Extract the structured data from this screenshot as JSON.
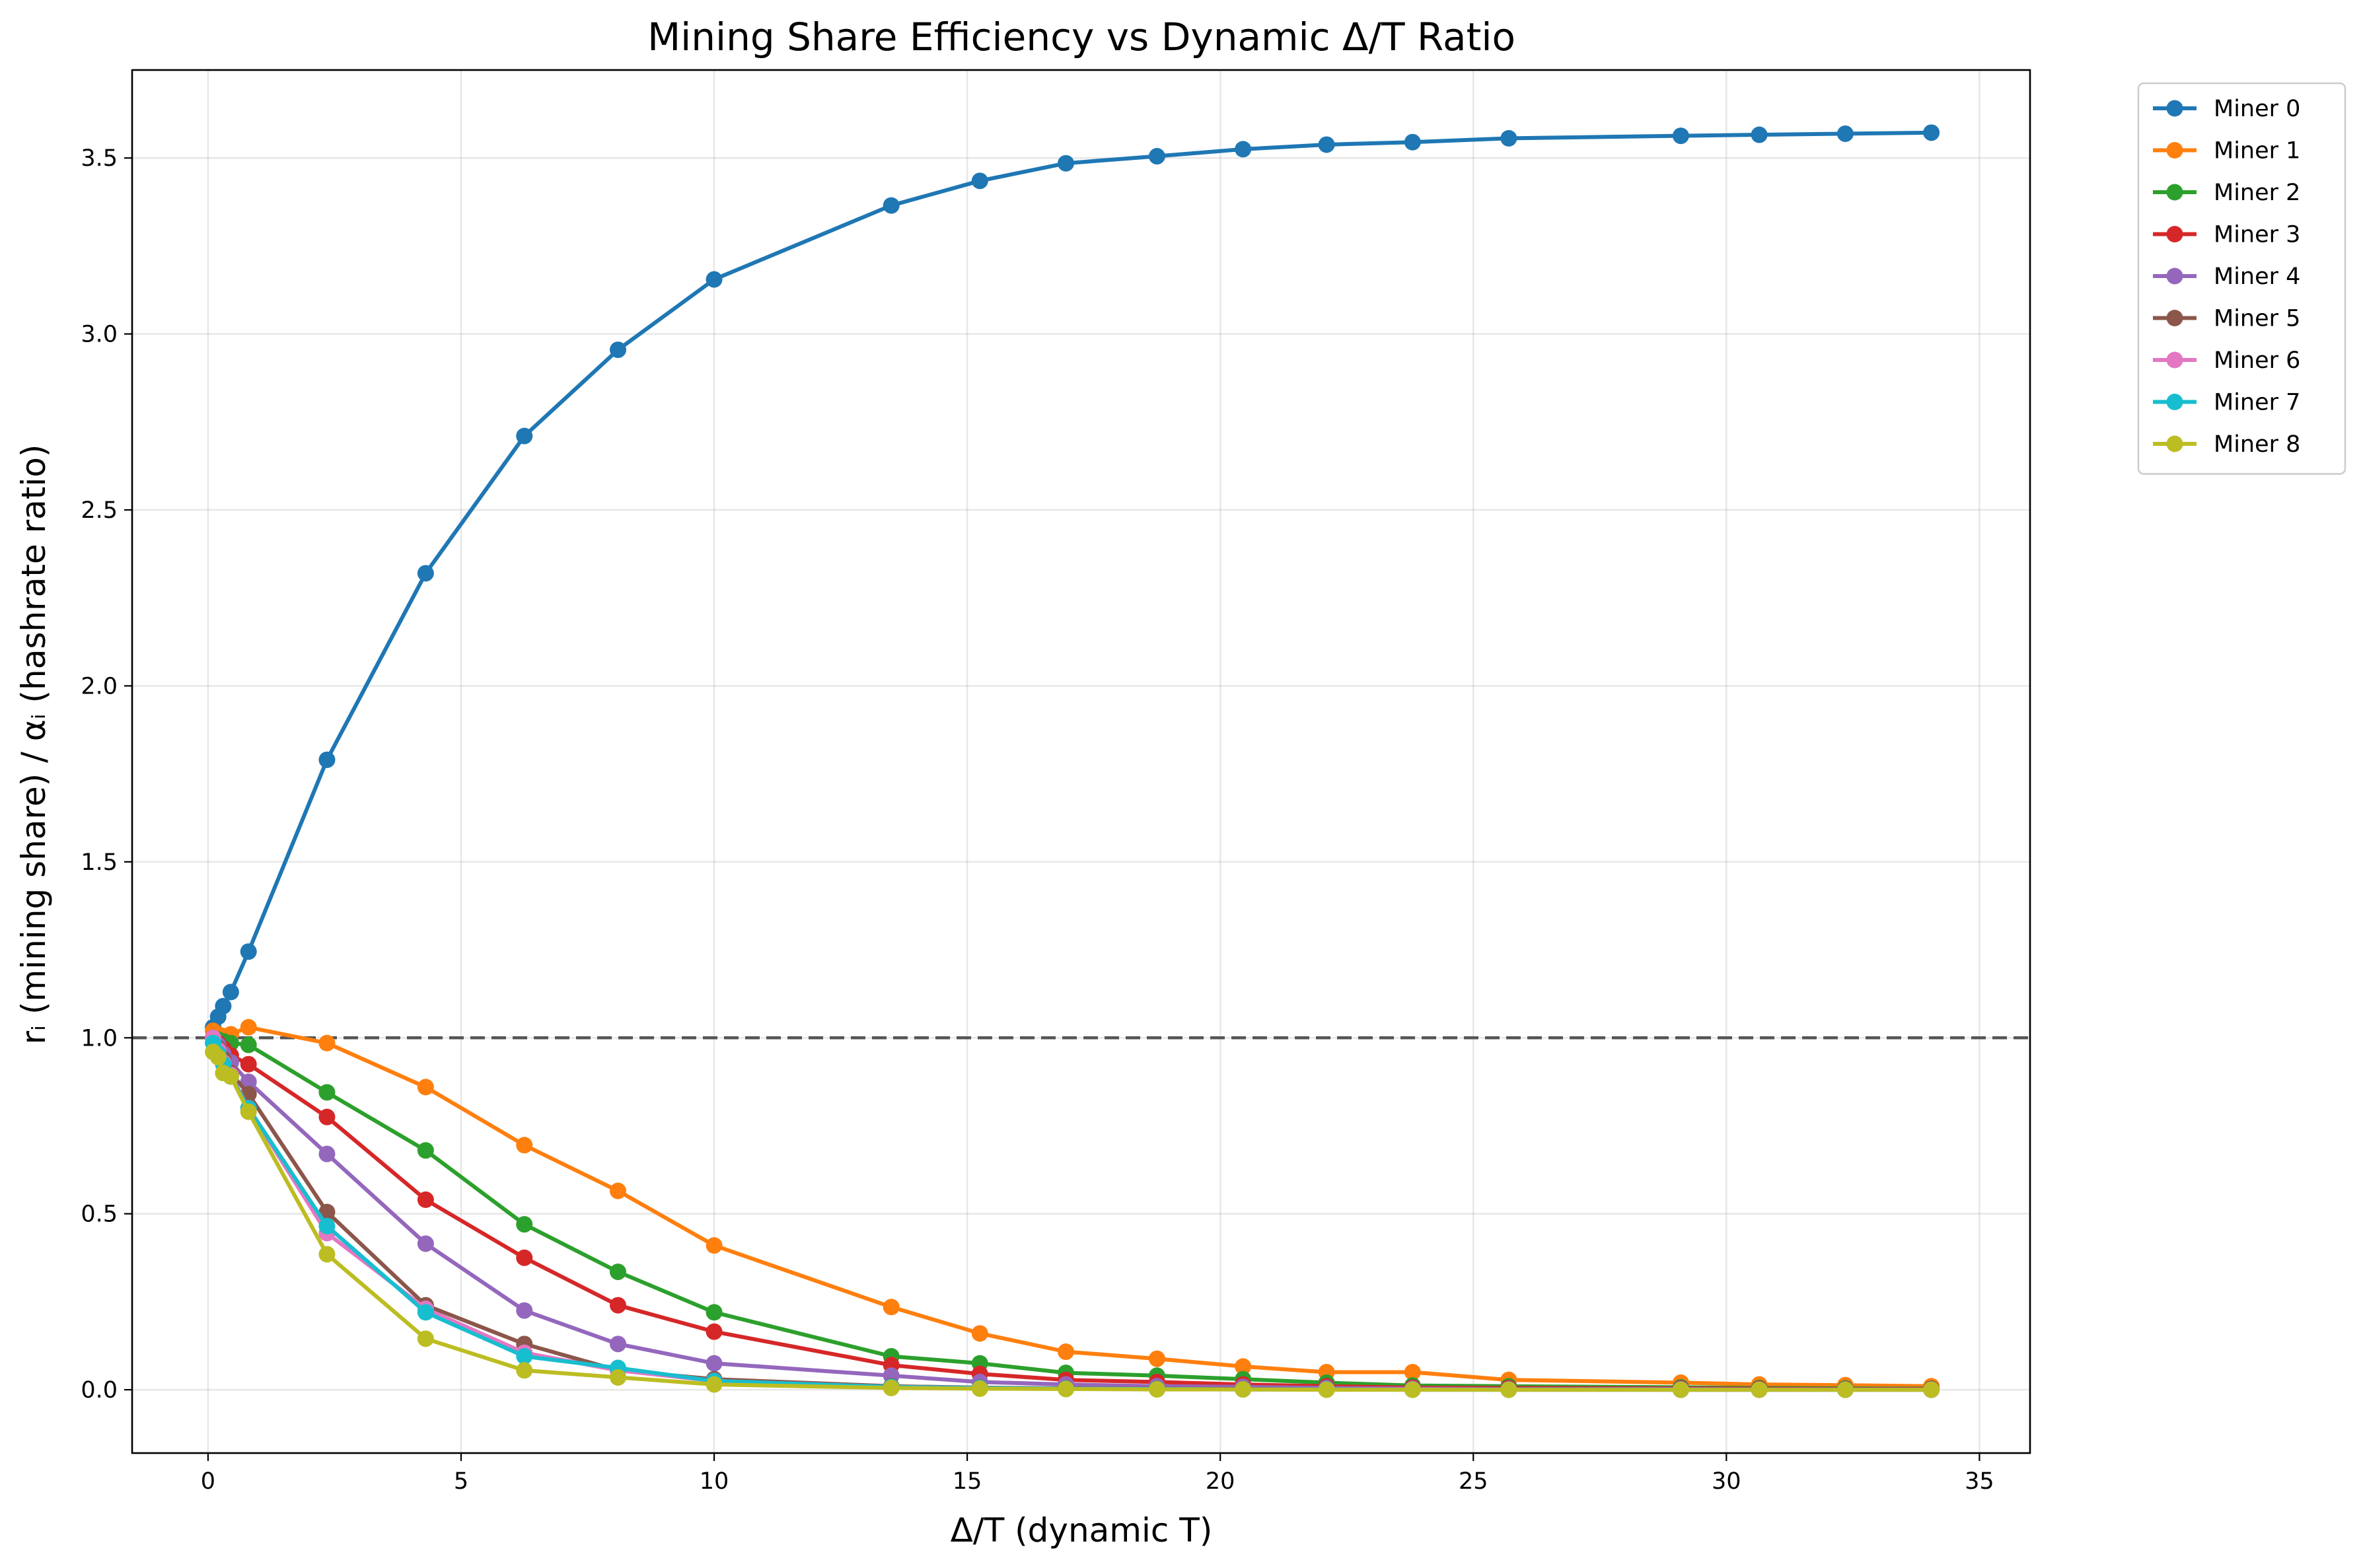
{
  "chart_data": {
    "type": "line",
    "title": "Mining Share Efficiency vs Dynamic Δ/T Ratio",
    "xlabel": "Δ/T (dynamic T)",
    "ylabel": "rᵢ (mining share) / αᵢ (hashrate ratio)",
    "xlim": [
      -1.5,
      36
    ],
    "ylim": [
      -0.18,
      3.75
    ],
    "xticks": [
      0,
      5,
      10,
      15,
      20,
      25,
      30,
      35
    ],
    "yticks": [
      0.0,
      0.5,
      1.0,
      1.5,
      2.0,
      2.5,
      3.0,
      3.5
    ],
    "xtick_labels": [
      "0",
      "5",
      "10",
      "15",
      "20",
      "25",
      "30",
      "35"
    ],
    "ytick_labels": [
      "0.0",
      "0.5",
      "1.0",
      "1.5",
      "2.0",
      "2.5",
      "3.0",
      "3.5"
    ],
    "grid": true,
    "legend_position": "outside-top-right",
    "reference_line": {
      "y": 1.0,
      "style": "dashed",
      "color": "#555555"
    },
    "x": [
      0.1,
      0.2,
      0.3,
      0.45,
      0.8,
      2.35,
      4.3,
      6.25,
      8.1,
      10.0,
      13.5,
      15.25,
      16.95,
      18.75,
      20.45,
      22.1,
      23.8,
      25.7,
      29.1,
      30.65,
      32.35,
      34.05
    ],
    "series": [
      {
        "name": "Miner 0",
        "color": "#1f77b4",
        "values": [
          1.03,
          1.06,
          1.09,
          1.13,
          1.245,
          1.79,
          2.32,
          2.71,
          2.955,
          3.155,
          3.365,
          3.435,
          3.485,
          3.505,
          3.525,
          3.538,
          3.545,
          3.556,
          3.563,
          3.566,
          3.569,
          3.572
        ]
      },
      {
        "name": "Miner 1",
        "color": "#ff7f0e",
        "values": [
          1.02,
          1.01,
          1.005,
          1.01,
          1.03,
          0.985,
          0.86,
          0.695,
          0.565,
          0.41,
          0.235,
          0.16,
          0.108,
          0.088,
          0.066,
          0.05,
          0.05,
          0.028,
          0.02,
          0.015,
          0.013,
          0.01
        ]
      },
      {
        "name": "Miner 2",
        "color": "#2ca02c",
        "values": [
          1.0,
          0.995,
          0.99,
          0.985,
          0.98,
          0.845,
          0.68,
          0.47,
          0.335,
          0.22,
          0.095,
          0.075,
          0.048,
          0.04,
          0.03,
          0.02,
          0.012,
          0.01,
          0.007,
          0.005,
          0.004,
          0.003
        ]
      },
      {
        "name": "Miner 3",
        "color": "#d62728",
        "values": [
          1.0,
          0.985,
          0.97,
          0.95,
          0.925,
          0.775,
          0.54,
          0.375,
          0.24,
          0.165,
          0.07,
          0.045,
          0.028,
          0.022,
          0.015,
          0.01,
          0.006,
          0.005,
          0.004,
          0.003,
          0.002,
          0.002
        ]
      },
      {
        "name": "Miner 4",
        "color": "#9467bd",
        "values": [
          1.0,
          0.98,
          0.955,
          0.93,
          0.875,
          0.67,
          0.415,
          0.225,
          0.13,
          0.075,
          0.04,
          0.022,
          0.015,
          0.01,
          0.008,
          0.005,
          0.003,
          0.002,
          0.002,
          0.001,
          0.001,
          0.001
        ]
      },
      {
        "name": "Miner 5",
        "color": "#8c564b",
        "values": [
          1.0,
          0.97,
          0.94,
          0.9,
          0.84,
          0.505,
          0.24,
          0.13,
          0.055,
          0.03,
          0.01,
          0.006,
          0.004,
          0.003,
          0.002,
          0.001,
          0.001,
          0.001,
          0.0,
          0.0,
          0.0,
          0.0
        ]
      },
      {
        "name": "Miner 6",
        "color": "#e377c2",
        "values": [
          1.0,
          0.965,
          0.93,
          0.895,
          0.8,
          0.445,
          0.23,
          0.105,
          0.055,
          0.025,
          0.008,
          0.005,
          0.003,
          0.002,
          0.001,
          0.001,
          0.001,
          0.0,
          0.0,
          0.0,
          0.0,
          0.0
        ]
      },
      {
        "name": "Miner 7",
        "color": "#17becf",
        "values": [
          0.985,
          0.955,
          0.925,
          0.89,
          0.8,
          0.465,
          0.22,
          0.095,
          0.062,
          0.025,
          0.008,
          0.005,
          0.003,
          0.002,
          0.001,
          0.001,
          0.0,
          0.0,
          0.0,
          0.0,
          0.0,
          0.0
        ]
      },
      {
        "name": "Miner 8",
        "color": "#bcbd22",
        "values": [
          0.96,
          0.945,
          0.9,
          0.89,
          0.79,
          0.385,
          0.145,
          0.055,
          0.035,
          0.015,
          0.005,
          0.003,
          0.002,
          0.001,
          0.001,
          0.0,
          0.0,
          0.0,
          0.0,
          0.0,
          0.0,
          0.0
        ]
      }
    ]
  }
}
